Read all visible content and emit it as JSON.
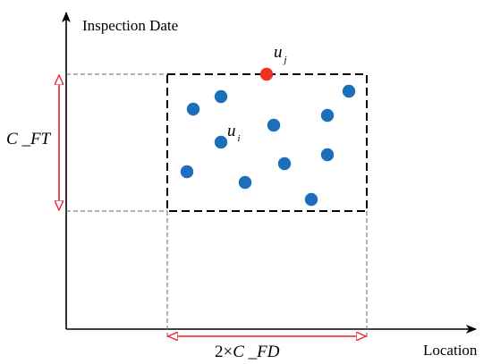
{
  "axes": {
    "y_label": "Inspection Date",
    "x_label": "Location"
  },
  "dimensions": {
    "vertical": {
      "name": "C",
      "sep": " _",
      "sub": "FT"
    },
    "horizontal": {
      "prefix": "2×",
      "name": "C",
      "sep": " _",
      "sub": "FD"
    }
  },
  "points": {
    "target": {
      "name": "u",
      "sub": "j"
    },
    "neighbor": {
      "name": "u",
      "sub": "i"
    }
  },
  "colors": {
    "axis": "#000000",
    "region_border": "#000000",
    "guide_lines": "#666666",
    "dimension_arrow": "#e8202a",
    "point_blue": "#1c6fb8",
    "point_red": "#ee3322"
  }
}
